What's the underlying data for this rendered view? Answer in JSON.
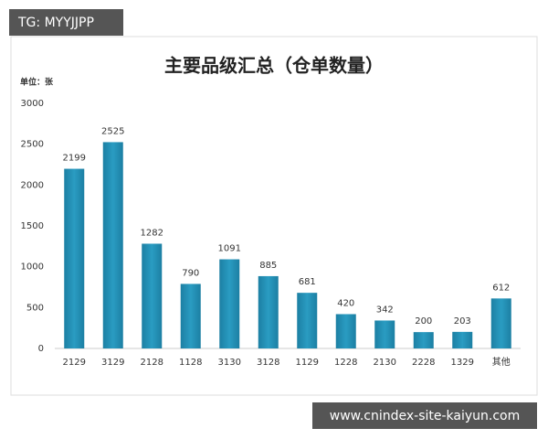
{
  "badges": [
    "TG: MYYJJPP",
    "www.cnindex-site-kaiyun.com"
  ],
  "chart_data": {
    "type": "bar",
    "title": "主要品级汇总（仓单数量）",
    "y_label": "单位：张",
    "categories": [
      "2129",
      "3129",
      "2128",
      "1128",
      "3130",
      "3128",
      "1129",
      "1228",
      "2130",
      "2228",
      "1329",
      "其他"
    ],
    "values": [
      2199,
      2525,
      1282,
      790,
      1091,
      885,
      681,
      420,
      342,
      200,
      203,
      612
    ],
    "color": "#2a9cc2",
    "ylim": [
      0,
      3000
    ],
    "yticks": [
      0,
      500,
      1000,
      1500,
      2000,
      2500,
      3000
    ],
    "grid": false
  }
}
